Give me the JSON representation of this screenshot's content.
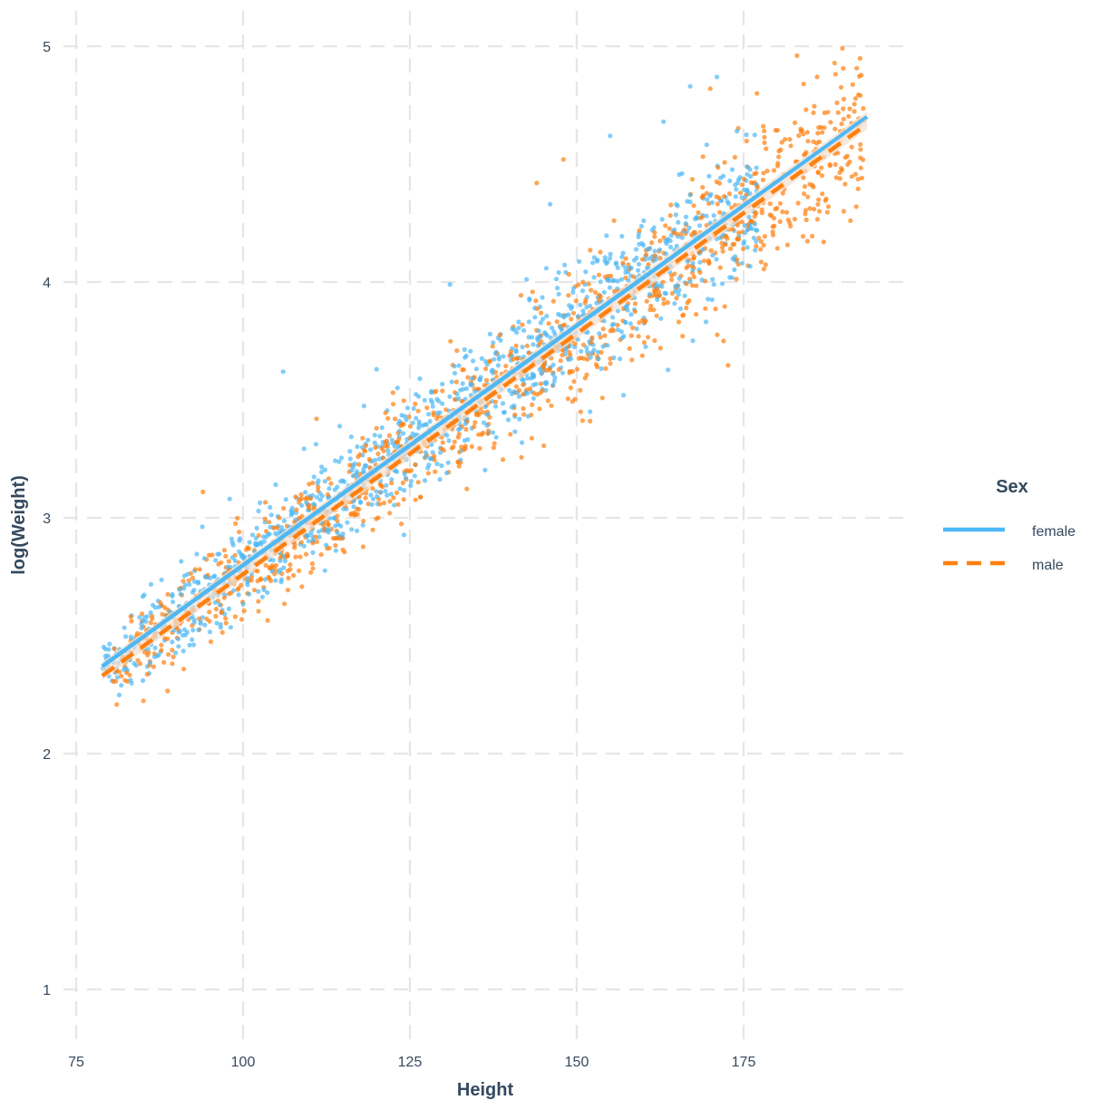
{
  "chart_data": {
    "type": "scatter",
    "title": "",
    "xlabel": "Height",
    "ylabel": "log(Weight)",
    "xlim": [
      73.9,
      198.2
    ],
    "ylim": [
      0.8,
      5.15
    ],
    "x_ticks": [
      75,
      100,
      125,
      150,
      175
    ],
    "y_ticks": [
      1,
      2,
      3,
      4,
      5
    ],
    "grid": true,
    "grid_style": "dashed",
    "legend": {
      "title": "Sex",
      "position": "right",
      "entries": [
        {
          "label": "female",
          "color": "#4db8f5",
          "linestyle": "solid"
        },
        {
          "label": "male",
          "color": "#ff7f0e",
          "linestyle": "dashed"
        }
      ]
    },
    "series": [
      {
        "name": "female",
        "color": "#4db8f5",
        "point_count_approx": 1500,
        "x_range": [
          79,
          177
        ],
        "fit_line": {
          "x": [
            78.9,
            193.5
          ],
          "y": [
            2.37,
            4.7
          ]
        },
        "spread_sd": 0.12,
        "sample_points": [
          [
            85,
            2.31
          ],
          [
            92,
            2.46
          ],
          [
            98,
            3.08
          ],
          [
            106,
            3.62
          ],
          [
            120,
            3.63
          ],
          [
            131,
            3.99
          ],
          [
            146,
            4.33
          ],
          [
            155,
            4.62
          ],
          [
            163,
            4.68
          ],
          [
            167,
            4.83
          ],
          [
            171,
            4.87
          ],
          [
            174,
            4.64
          ],
          [
            176,
            4.23
          ],
          [
            157,
            3.52
          ],
          [
            152,
            3.45
          ]
        ]
      },
      {
        "name": "male",
        "color": "#ff7f0e",
        "point_count_approx": 1500,
        "x_range": [
          80,
          193
        ],
        "fit_line": {
          "x": [
            78.9,
            193.5
          ],
          "y": [
            2.33,
            4.67
          ]
        },
        "spread_sd": 0.13,
        "sample_points": [
          [
            81,
            2.35
          ],
          [
            94,
            3.11
          ],
          [
            111,
            3.42
          ],
          [
            120,
            3.38
          ],
          [
            144,
            4.42
          ],
          [
            148,
            4.52
          ],
          [
            152,
            3.41
          ],
          [
            170,
            4.82
          ],
          [
            172,
            3.75
          ],
          [
            177,
            4.8
          ],
          [
            183,
            4.96
          ],
          [
            184,
            4.84
          ],
          [
            186,
            4.87
          ],
          [
            189,
            4.76
          ],
          [
            190,
            4.3
          ],
          [
            191,
            4.26
          ],
          [
            192,
            4.66
          ],
          [
            187,
            4.17
          ]
        ]
      }
    ]
  },
  "plot": {
    "x_axis_title": "Height",
    "y_axis_title": "log(Weight)",
    "x_tick_labels": [
      "75",
      "100",
      "125",
      "150",
      "175"
    ],
    "y_tick_labels": [
      "1",
      "2",
      "3",
      "4",
      "5"
    ]
  },
  "legend": {
    "title": "Sex",
    "items": [
      {
        "label": "female"
      },
      {
        "label": "male"
      }
    ]
  }
}
